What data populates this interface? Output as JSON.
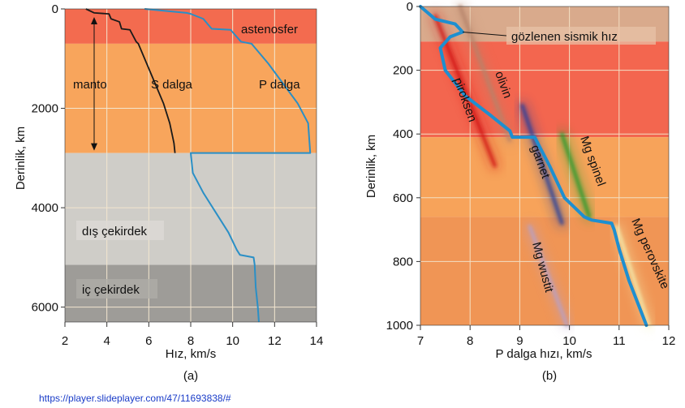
{
  "source_text": "https://player.slideplayer.com/47/11693838/#",
  "chart_data": [
    {
      "type": "line",
      "panel_label": "(a)",
      "xlabel": "Hız, km/s",
      "ylabel": "Derinlik, km",
      "xlim": [
        2,
        14
      ],
      "ylim": [
        6300,
        0
      ],
      "x_ticks": [
        2,
        4,
        6,
        8,
        10,
        12,
        14
      ],
      "y_ticks": [
        0,
        2000,
        4000,
        6000
      ],
      "grid": true,
      "regions": [
        {
          "name": "astenosfer",
          "label": "astenosfer",
          "top": 0,
          "bottom": 700,
          "color": "#f36b4f"
        },
        {
          "name": "manto",
          "label": "manto",
          "top": 700,
          "bottom": 2900,
          "color": "#f8a55c"
        },
        {
          "name": "dis-cekirdek",
          "label": "dış çekirdek",
          "top": 2900,
          "bottom": 5150,
          "color": "#cfcdc8"
        },
        {
          "name": "ic-cekirdek",
          "label": "iç çekirdek",
          "top": 5150,
          "bottom": 6300,
          "color": "#9e9c98"
        }
      ],
      "series": [
        {
          "name": "S dalga",
          "label": "S dalga",
          "color": "#1a1a1a",
          "x": [
            3.0,
            3.4,
            4.1,
            4.2,
            4.6,
            4.7,
            5.1,
            5.4,
            5.5,
            5.9,
            6.3,
            6.7,
            7.0,
            7.2,
            7.25
          ],
          "y": [
            0,
            80,
            100,
            200,
            260,
            400,
            420,
            660,
            700,
            1100,
            1500,
            1900,
            2300,
            2700,
            2900
          ]
        },
        {
          "name": "P dalga",
          "label": "P dalga",
          "color": "#2a8fc6",
          "x": [
            5.8,
            7.8,
            8.0,
            8.6,
            9.0,
            9.9,
            10.4,
            10.9,
            11.7,
            12.4,
            13.1,
            13.6,
            13.7,
            8.0,
            8.1,
            8.6,
            9.2,
            9.8,
            10.2,
            10.35,
            11.0,
            11.05,
            11.1,
            11.2,
            11.25
          ],
          "y": [
            0,
            80,
            100,
            200,
            400,
            420,
            660,
            700,
            1100,
            1500,
            1900,
            2300,
            2900,
            2900,
            3300,
            3700,
            4100,
            4500,
            4850,
            4950,
            5000,
            5150,
            5600,
            6000,
            6300
          ]
        }
      ],
      "annotations": [
        {
          "text": "manto",
          "type": "double-arrow",
          "from_depth": 0,
          "to_depth": 2900
        }
      ]
    },
    {
      "type": "line",
      "panel_label": "(b)",
      "xlabel": "P dalga hızı, km/s",
      "ylabel": "Derinlik, km",
      "xlim": [
        7,
        12
      ],
      "ylim": [
        1000,
        0
      ],
      "x_ticks": [
        7,
        8,
        9,
        10,
        11,
        12
      ],
      "y_ticks": [
        0,
        200,
        400,
        600,
        800,
        1000
      ],
      "grid": true,
      "regions": [
        {
          "top": 0,
          "bottom": 110,
          "color": "#d9aa8c"
        },
        {
          "top": 110,
          "bottom": 410,
          "color": "#f3664f"
        },
        {
          "top": 410,
          "bottom": 660,
          "color": "#f7a35a"
        },
        {
          "top": 660,
          "bottom": 1000,
          "color": "#f09555"
        }
      ],
      "series": [
        {
          "name": "gözlenen sismik hız",
          "label": "gözlenen sismik hız",
          "color": "#1e8fd0",
          "x": [
            7.0,
            7.3,
            7.7,
            7.85,
            7.6,
            7.4,
            7.5,
            7.9,
            8.4,
            8.8,
            8.85,
            9.3,
            9.6,
            9.9,
            10.3,
            10.45,
            10.85,
            10.9,
            11.0,
            11.2,
            11.55
          ],
          "y": [
            0,
            40,
            55,
            80,
            95,
            130,
            200,
            280,
            340,
            390,
            410,
            410,
            500,
            600,
            660,
            670,
            680,
            700,
            760,
            860,
            1000
          ]
        }
      ],
      "minerals": [
        {
          "name": "piroksen",
          "label": "piroksen",
          "color": "#d01818",
          "x": [
            7.3,
            8.5
          ],
          "y": [
            30,
            500
          ]
        },
        {
          "name": "olivin",
          "label": "olivin",
          "color": "#b5836a",
          "x": [
            7.8,
            8.8
          ],
          "y": [
            0,
            420
          ]
        },
        {
          "name": "garnet",
          "label": "garnet",
          "color": "#1b3c9e",
          "x": [
            9.05,
            9.85
          ],
          "y": [
            310,
            680
          ]
        },
        {
          "name": "Mg spinel",
          "label": "Mg spinel",
          "color": "#1a9a2a",
          "x": [
            9.85,
            10.4
          ],
          "y": [
            400,
            660
          ]
        },
        {
          "name": "Mg wustit",
          "label": "Mg wustit",
          "color": "#b6a0c8",
          "x": [
            9.2,
            9.95
          ],
          "y": [
            690,
            1000
          ]
        },
        {
          "name": "Mg perovskite",
          "label": "Mg perovskite",
          "color": "#f4efb0",
          "x": [
            10.95,
            11.6
          ],
          "y": [
            690,
            1000
          ]
        }
      ]
    }
  ]
}
